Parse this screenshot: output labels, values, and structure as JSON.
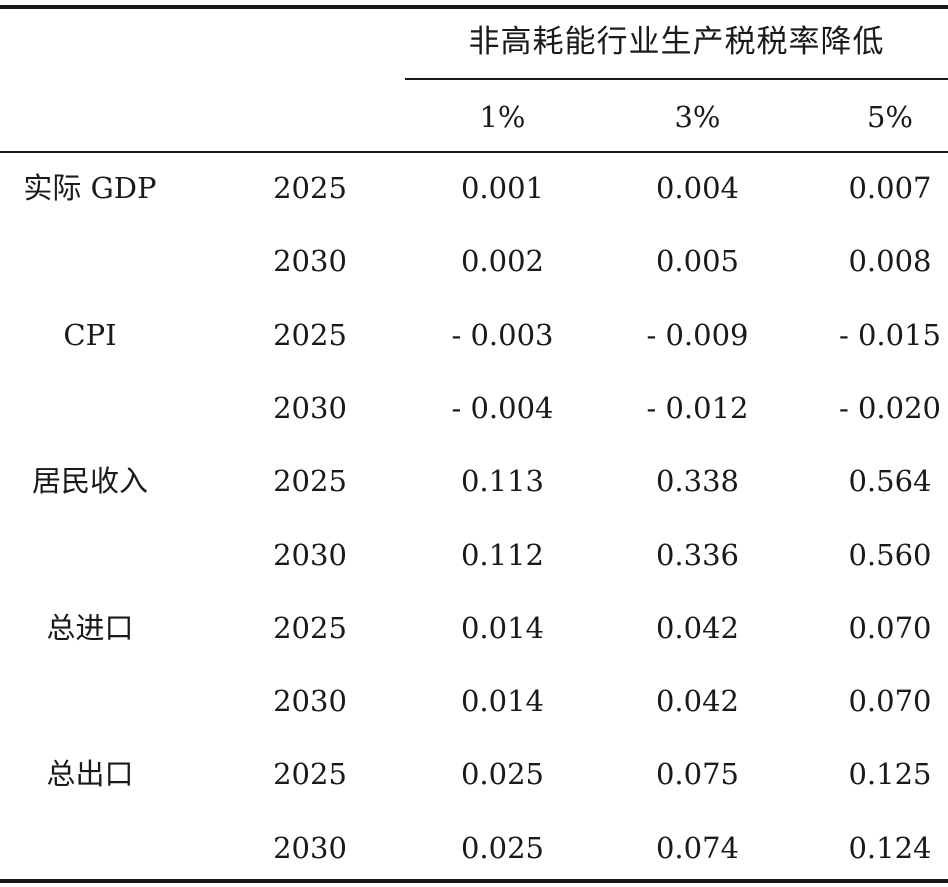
{
  "table": {
    "group_header": "非高耗能行业生产税税率降低",
    "column_headers": [
      "1%",
      "3%",
      "5%"
    ],
    "rows": [
      {
        "indicator": "实际 GDP",
        "year": "2025",
        "values": [
          "0.001",
          "0.004",
          "0.007"
        ]
      },
      {
        "indicator": "",
        "year": "2030",
        "values": [
          "0.002",
          "0.005",
          "0.008"
        ]
      },
      {
        "indicator": "CPI",
        "year": "2025",
        "values": [
          "- 0.003",
          "- 0.009",
          "- 0.015"
        ]
      },
      {
        "indicator": "",
        "year": "2030",
        "values": [
          "- 0.004",
          "- 0.012",
          "- 0.020"
        ]
      },
      {
        "indicator": "居民收入",
        "year": "2025",
        "values": [
          "0.113",
          "0.338",
          "0.564"
        ]
      },
      {
        "indicator": "",
        "year": "2030",
        "values": [
          "0.112",
          "0.336",
          "0.560"
        ]
      },
      {
        "indicator": "总进口",
        "year": "2025",
        "values": [
          "0.014",
          "0.042",
          "0.070"
        ]
      },
      {
        "indicator": "",
        "year": "2030",
        "values": [
          "0.014",
          "0.042",
          "0.070"
        ]
      },
      {
        "indicator": "总出口",
        "year": "2025",
        "values": [
          "0.025",
          "0.075",
          "0.125"
        ]
      },
      {
        "indicator": "",
        "year": "2030",
        "values": [
          "0.025",
          "0.074",
          "0.124"
        ]
      }
    ]
  }
}
